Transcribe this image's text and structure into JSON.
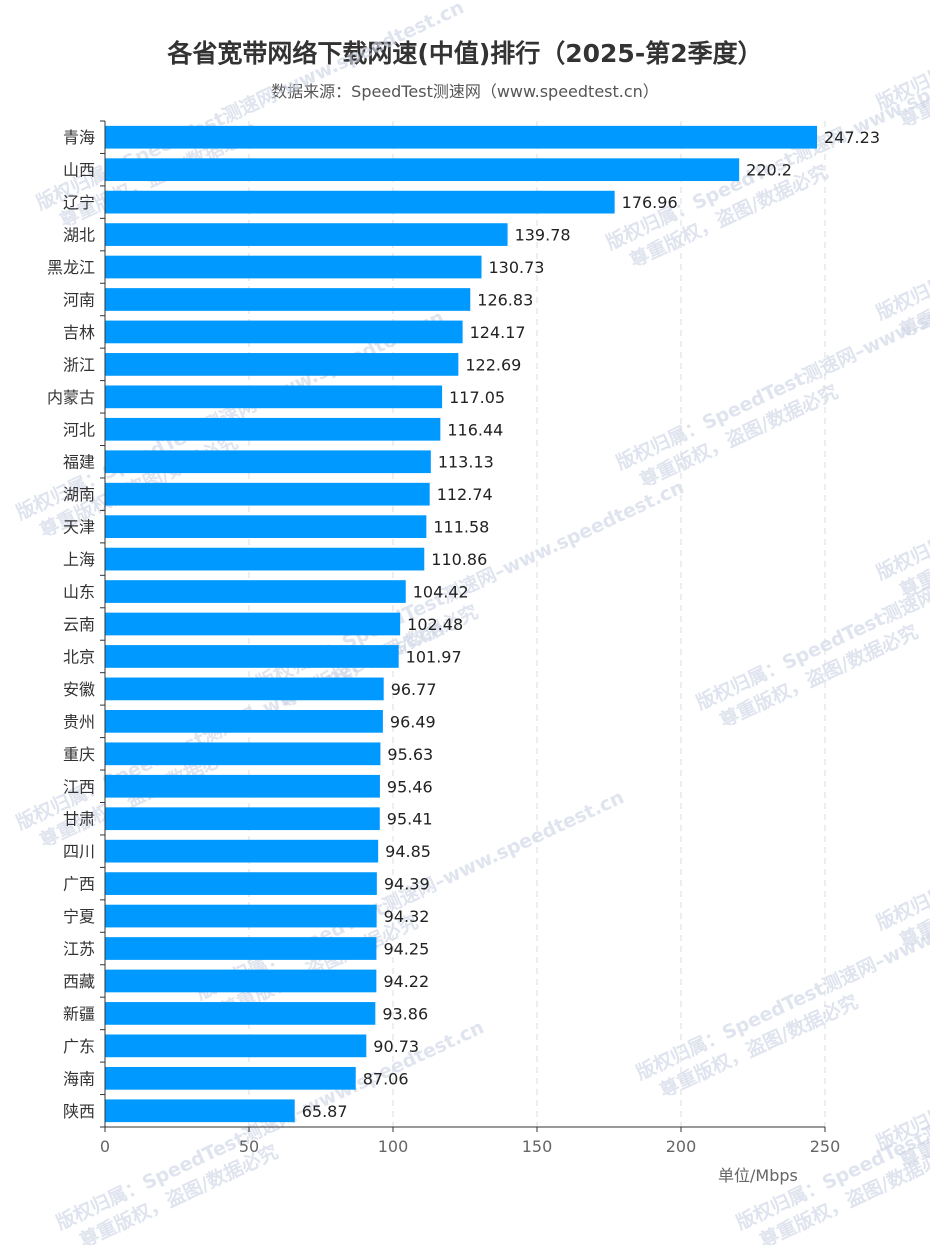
{
  "title": "各省宽带网络下载网速(中值)排行（2025-第2季度）",
  "subtitle": "数据来源：SpeedTest测速网（www.speedtest.cn）",
  "unit_label": "单位/Mbps",
  "watermark": {
    "line1": "版权归属：SpeedTest测速网–www.speedtest.cn",
    "line2": "尊重版权，盗图/数据必究"
  },
  "colors": {
    "bar": "#0099ff",
    "axis": "#333333",
    "grid": "#dddddd"
  },
  "chart_data": {
    "type": "bar",
    "orientation": "horizontal",
    "categories": [
      "青海",
      "山西",
      "辽宁",
      "湖北",
      "黑龙江",
      "河南",
      "吉林",
      "浙江",
      "内蒙古",
      "河北",
      "福建",
      "湖南",
      "天津",
      "上海",
      "山东",
      "云南",
      "北京",
      "安徽",
      "贵州",
      "重庆",
      "江西",
      "甘肃",
      "四川",
      "广西",
      "宁夏",
      "江苏",
      "西藏",
      "新疆",
      "广东",
      "海南",
      "陕西"
    ],
    "values": [
      247.23,
      220.2,
      176.96,
      139.78,
      130.73,
      126.83,
      124.17,
      122.69,
      117.05,
      116.44,
      113.13,
      112.74,
      111.58,
      110.86,
      104.42,
      102.48,
      101.97,
      96.77,
      96.49,
      95.63,
      95.46,
      95.41,
      94.85,
      94.39,
      94.32,
      94.25,
      94.22,
      93.86,
      90.73,
      87.06,
      65.87
    ],
    "value_labels": [
      "247.23",
      "220.2",
      "176.96",
      "139.78",
      "130.73",
      "126.83",
      "124.17",
      "122.69",
      "117.05",
      "116.44",
      "113.13",
      "112.74",
      "111.58",
      "110.86",
      "104.42",
      "102.48",
      "101.97",
      "96.77",
      "96.49",
      "95.63",
      "95.46",
      "95.41",
      "94.85",
      "94.39",
      "94.32",
      "94.25",
      "94.22",
      "93.86",
      "90.73",
      "87.06",
      "65.87"
    ],
    "xticks": [
      0,
      50,
      100,
      150,
      200,
      250
    ],
    "xlim": [
      0,
      250
    ],
    "xlabel": "单位/Mbps",
    "ylabel": "",
    "grid": "vertical dashed"
  }
}
